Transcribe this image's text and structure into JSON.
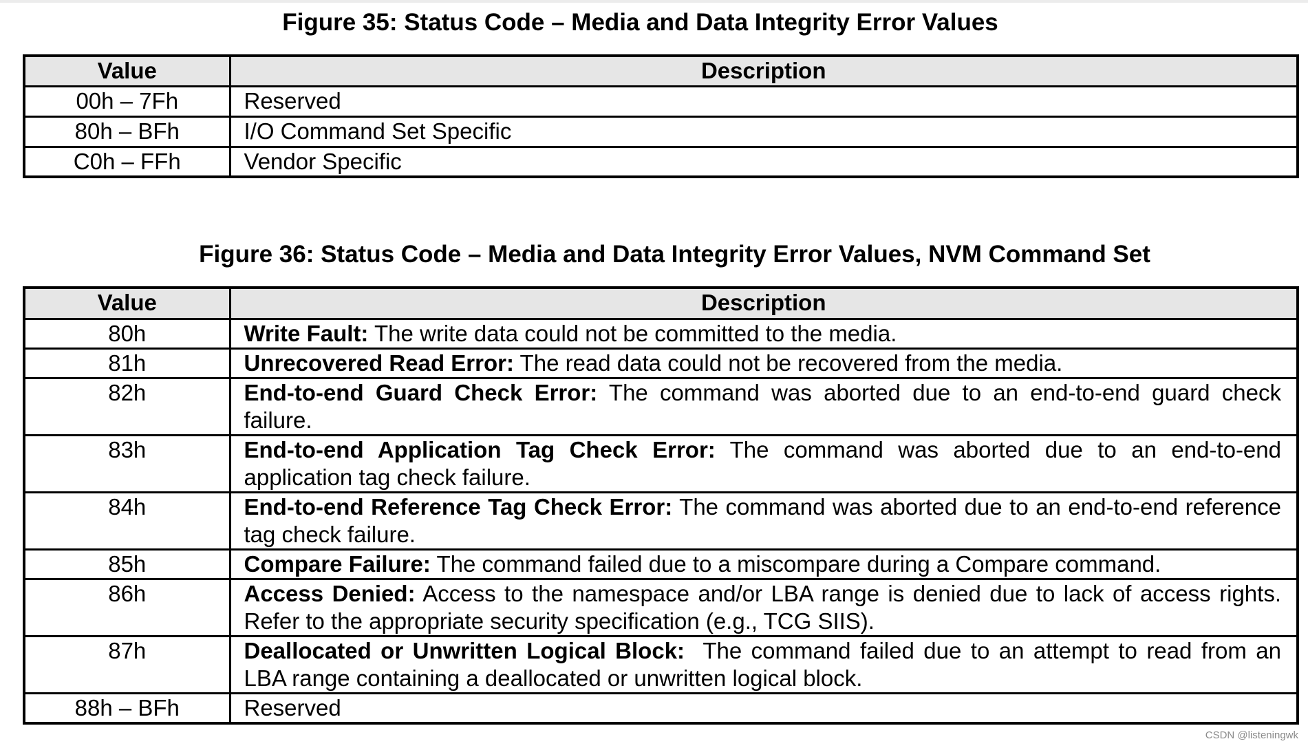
{
  "figure35": {
    "title": "Figure 35: Status Code – Media and Data Integrity Error Values",
    "headers": [
      "Value",
      "Description"
    ],
    "rows": [
      {
        "value": "00h – 7Fh",
        "term": "",
        "desc": "Reserved"
      },
      {
        "value": "80h – BFh",
        "term": "",
        "desc": "I/O Command Set Specific"
      },
      {
        "value": "C0h – FFh",
        "term": "",
        "desc": "Vendor Specific"
      }
    ]
  },
  "figure36": {
    "title": "Figure 36: Status Code – Media and Data Integrity Error Values, NVM Command Set",
    "headers": [
      "Value",
      "Description"
    ],
    "rows": [
      {
        "value": "80h",
        "term": "Write Fault:",
        "desc": " The write data could not be committed to the media."
      },
      {
        "value": "81h",
        "term": "Unrecovered Read Error:",
        "desc": " The read data could not be recovered from the media."
      },
      {
        "value": "82h",
        "term": "End-to-end Guard Check Error:",
        "desc": " The command was aborted due to an end-to-end guard check failure."
      },
      {
        "value": "83h",
        "term": "End-to-end Application Tag Check Error:",
        "desc": " The command was aborted due to an end-to-end application tag check failure."
      },
      {
        "value": "84h",
        "term": "End-to-end Reference Tag Check Error:",
        "desc": " The command was aborted due to an end-to-end reference tag check failure."
      },
      {
        "value": "85h",
        "term": "Compare Failure:",
        "desc": " The command failed due to a miscompare during a Compare command."
      },
      {
        "value": "86h",
        "term": "Access Denied:",
        "desc": " Access to the namespace and/or LBA range is denied due to lack of access rights. Refer to the appropriate security specification (e.g., TCG SIIS)."
      },
      {
        "value": "87h",
        "term": "Deallocated or Unwritten Logical Block:",
        "desc": "  The command failed due to an attempt to read from an LBA range containing a deallocated or unwritten logical block."
      },
      {
        "value": "88h – BFh",
        "term": "",
        "desc": "Reserved"
      }
    ]
  },
  "watermark": "CSDN @listeningwk"
}
